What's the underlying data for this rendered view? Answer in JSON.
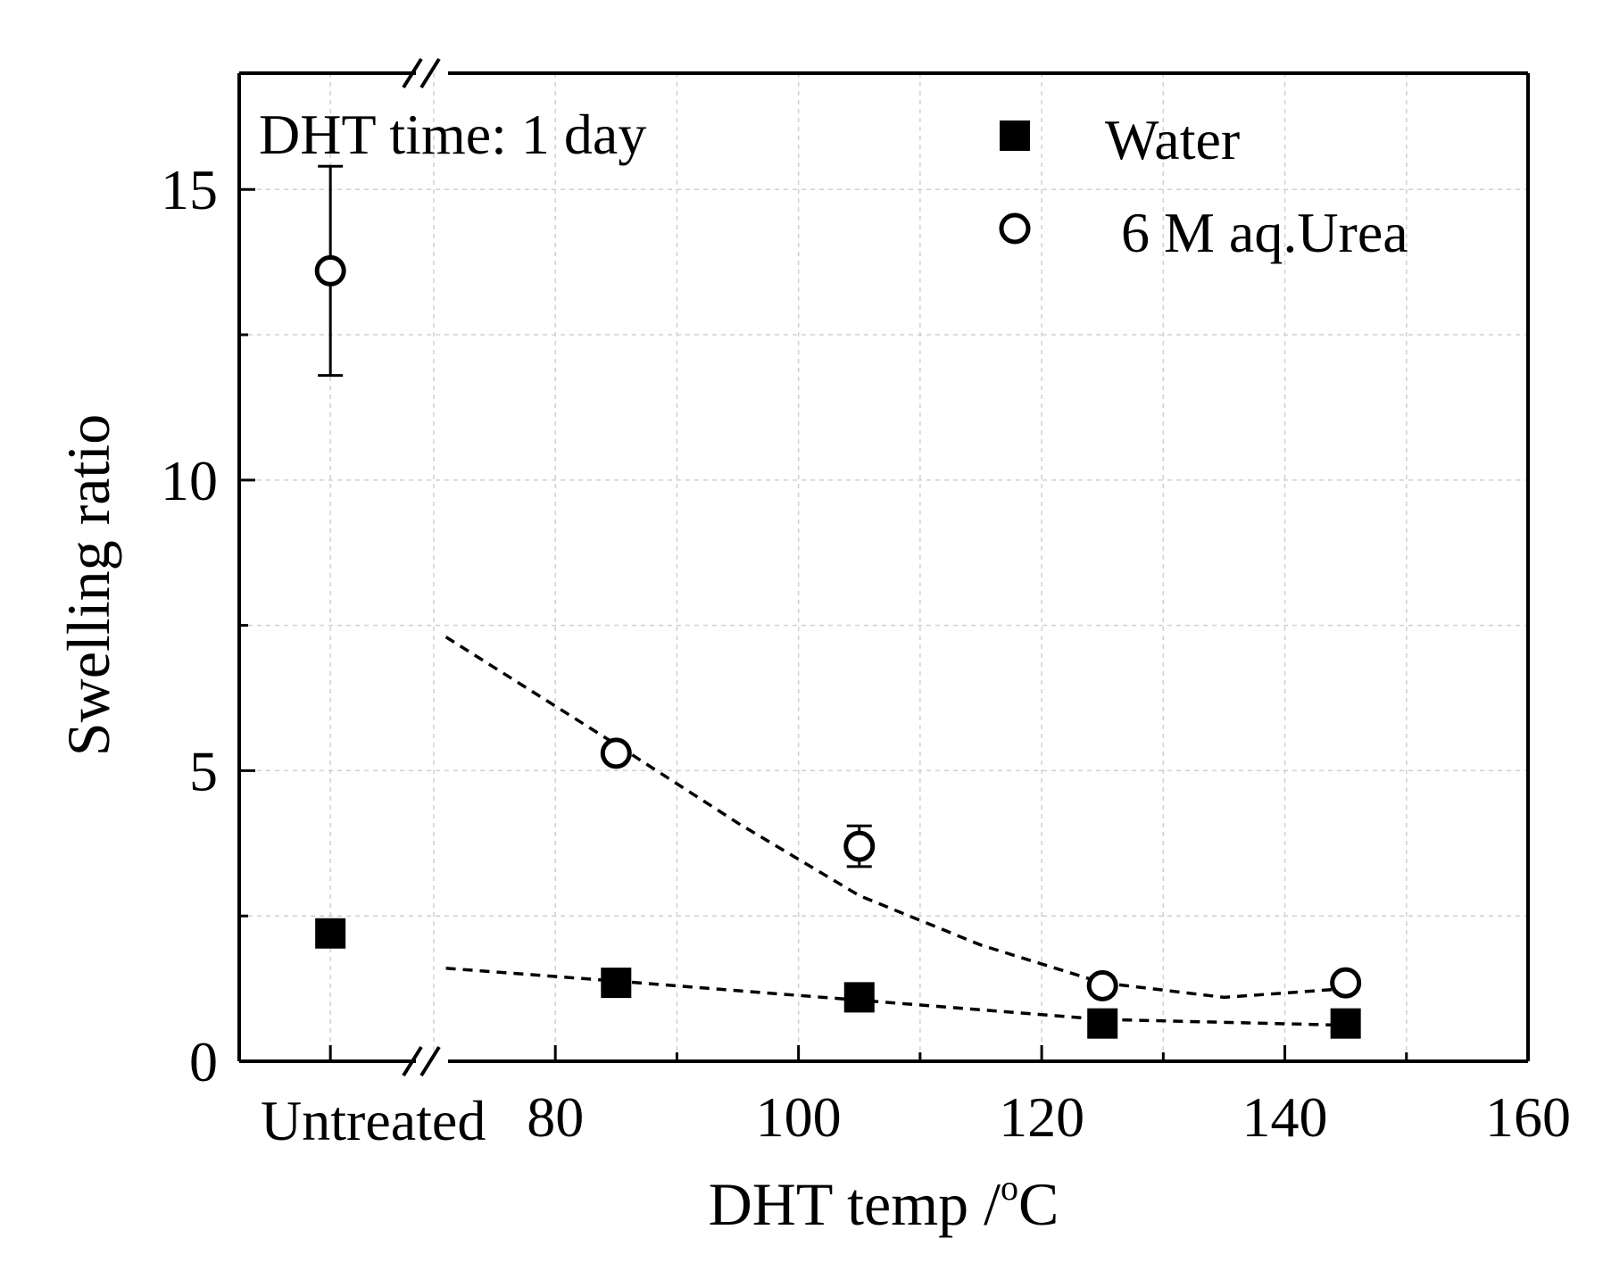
{
  "chart_data": {
    "type": "scatter",
    "title": "",
    "xlabel": "DHT temp /",
    "xlabel_unit": "C",
    "xlabel_degree": "o",
    "ylabel": "Swelling ratio",
    "annotation": "DHT time: 1 day",
    "x_break_label": "Untreated",
    "x_break_position": 61.5,
    "xlim": [
      54,
      160
    ],
    "ylim": [
      0,
      17
    ],
    "x_ticks": [
      80,
      100,
      120,
      140,
      160
    ],
    "x_tick_labels": [
      "80",
      "100",
      "120",
      "140",
      "160"
    ],
    "y_ticks": [
      0,
      5,
      10,
      15
    ],
    "y_tick_labels": [
      "0",
      "5",
      "10",
      "15"
    ],
    "grid": true,
    "legend_position": "top-right",
    "series": [
      {
        "name": "Water",
        "marker": "filled-square",
        "untreated": {
          "y": 2.2,
          "err": 0.2
        },
        "points": [
          {
            "x": 85,
            "y": 1.35,
            "err": 0.1
          },
          {
            "x": 105,
            "y": 1.1,
            "err": 0.1
          },
          {
            "x": 125,
            "y": 0.65,
            "err": 0.05
          },
          {
            "x": 145,
            "y": 0.65,
            "err": 0.05
          }
        ],
        "trend": [
          [
            71,
            1.6
          ],
          [
            85,
            1.38
          ],
          [
            105,
            1.05
          ],
          [
            125,
            0.72
          ],
          [
            145,
            0.62
          ]
        ]
      },
      {
        "name": "6 M aq.Urea",
        "marker": "open-circle",
        "untreated": {
          "y": 13.6,
          "err": 1.8
        },
        "points": [
          {
            "x": 85,
            "y": 5.3,
            "err": 0.1
          },
          {
            "x": 105,
            "y": 3.7,
            "err": 0.35
          },
          {
            "x": 125,
            "y": 1.3,
            "err": 0.15
          },
          {
            "x": 145,
            "y": 1.35,
            "err": 0.1
          }
        ],
        "trend": [
          [
            71,
            7.3
          ],
          [
            85,
            5.45
          ],
          [
            95,
            4.1
          ],
          [
            105,
            2.85
          ],
          [
            115,
            2.0
          ],
          [
            125,
            1.35
          ],
          [
            135,
            1.1
          ],
          [
            145,
            1.25
          ]
        ]
      }
    ]
  }
}
